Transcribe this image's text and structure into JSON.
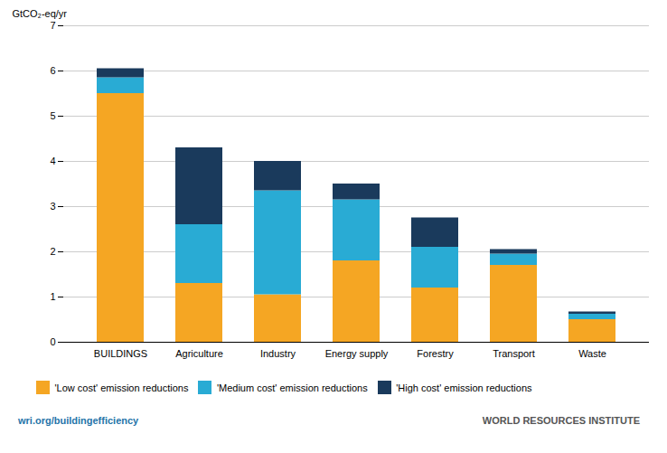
{
  "chart_data": {
    "type": "bar",
    "stacked": true,
    "categories": [
      "BUILDINGS",
      "Agriculture",
      "Industry",
      "Energy supply",
      "Forestry",
      "Transport",
      "Waste"
    ],
    "series": [
      {
        "name": "'Low cost' emission reductions",
        "color": "#F5A623",
        "values": [
          5.5,
          1.3,
          1.05,
          1.8,
          1.2,
          1.7,
          0.5
        ]
      },
      {
        "name": "'Medium cost' emission reductions",
        "color": "#29ABD4",
        "values": [
          0.35,
          1.3,
          2.3,
          1.35,
          0.9,
          0.25,
          0.12
        ]
      },
      {
        "name": "'High cost' emission reductions",
        "color": "#1A3A5C",
        "values": [
          0.2,
          1.7,
          0.65,
          0.35,
          0.65,
          0.1,
          0.05
        ]
      }
    ],
    "ylabel": "GtCO₂-eq/yr",
    "ylim": [
      0,
      7
    ],
    "yticks": [
      0,
      1,
      2,
      3,
      4,
      5,
      6,
      7
    ],
    "grid": true,
    "legend": "bottom",
    "annotations": [
      "wri.org/buildingefficiency",
      "WORLD RESOURCES INSTITUTE"
    ]
  }
}
